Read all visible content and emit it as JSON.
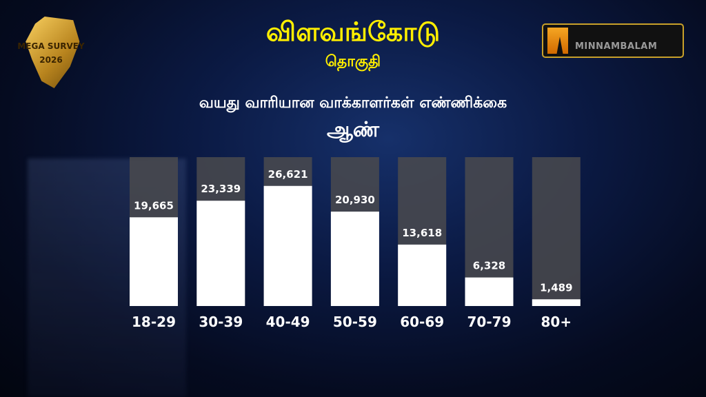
{
  "header": {
    "constituency": "விளவங்கோடு",
    "subtitle": "தொகுதி",
    "chart_heading": "வயது வாரியான வாக்காளர்கள் எண்ணிக்கை",
    "gender": "ஆண்"
  },
  "logos": {
    "left_line1": "MEGA SURVEY",
    "left_line2": "2026",
    "right": "MINNAMBALAM"
  },
  "colors": {
    "title": "#ffee00",
    "bar_fill": "#ffffff",
    "bar_track": "#4a4a4e",
    "logo_accent": "#f5a623"
  },
  "chart_data": {
    "type": "bar",
    "title": "வயது வாரியான வாக்காளர்கள் எண்ணிக்கை",
    "categories": [
      "18-29",
      "30-39",
      "40-49",
      "50-59",
      "60-69",
      "70-79",
      "80+"
    ],
    "values": [
      19665,
      23339,
      26621,
      20930,
      13618,
      6328,
      1489
    ],
    "value_labels": [
      "19,665",
      "23,339",
      "26,621",
      "20,930",
      "13,618",
      "6,328",
      "1,489"
    ],
    "ylim": [
      0,
      33000
    ],
    "grid": false,
    "legend": "none"
  }
}
